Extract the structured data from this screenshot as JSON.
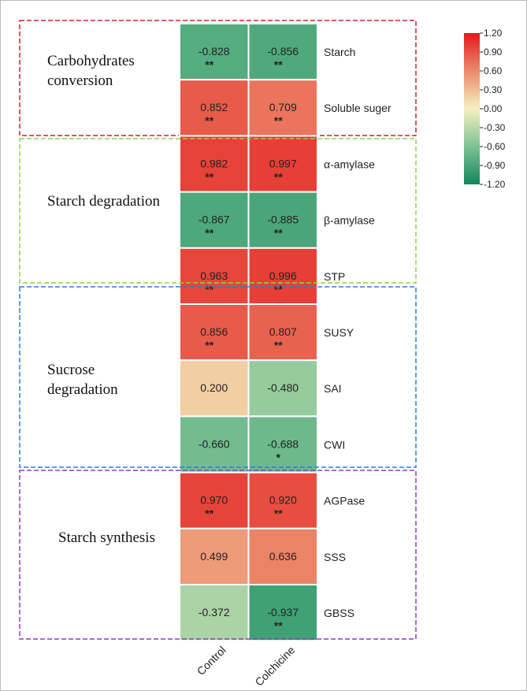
{
  "chart_data": {
    "type": "heatmap",
    "columns": [
      "Control",
      "Colchicine"
    ],
    "clim": [
      -1.2,
      1.2
    ],
    "colormap": [
      "#11875d",
      "#7dc294",
      "#f5f0c0",
      "#eb8a6a",
      "#e3191c"
    ],
    "cticks": [
      {
        "value": 1.2,
        "label": "1.20"
      },
      {
        "value": 0.9,
        "label": "0.90"
      },
      {
        "value": 0.6,
        "label": "0.60"
      },
      {
        "value": 0.3,
        "label": "0.30"
      },
      {
        "value": 0,
        "label": "0.00"
      },
      {
        "value": -0.3,
        "label": "-0.30"
      },
      {
        "value": -0.6,
        "label": "-0.60"
      },
      {
        "value": -0.9,
        "label": "-0.90"
      },
      {
        "value": -1.2,
        "label": "-1.20"
      }
    ],
    "groups": [
      {
        "name": "Carbohydrates conversion",
        "color": "#d0202a",
        "rows": [
          {
            "name": "Starch",
            "values": [
              -0.828,
              -0.856
            ],
            "value_labels": [
              "-0.828",
              "-0.856"
            ],
            "stars": [
              "**",
              "**"
            ]
          },
          {
            "name": "Soluble suger",
            "values": [
              0.852,
              0.709
            ],
            "value_labels": [
              "0.852",
              "0.709"
            ],
            "stars": [
              "**",
              "**"
            ]
          }
        ]
      },
      {
        "name": "Starch degradation",
        "color": "#8fd14f",
        "rows": [
          {
            "name": "α-amylase",
            "values": [
              0.982,
              0.997
            ],
            "value_labels": [
              "0.982",
              "0.997"
            ],
            "stars": [
              "**",
              "**"
            ]
          },
          {
            "name": "β-amylase",
            "values": [
              -0.867,
              -0.885
            ],
            "value_labels": [
              "-0.867",
              "-0.885"
            ],
            "stars": [
              "**",
              "**"
            ]
          },
          {
            "name": "STP",
            "values": [
              0.963,
              0.996
            ],
            "value_labels": [
              "0.963",
              "0.996"
            ],
            "stars": [
              "**",
              "**"
            ]
          }
        ]
      },
      {
        "name": "Sucrose degradation",
        "color": "#2a7fd4",
        "rows": [
          {
            "name": "SUSY",
            "values": [
              0.856,
              0.807
            ],
            "value_labels": [
              "0.856",
              "0.807"
            ],
            "stars": [
              "**",
              "**"
            ]
          },
          {
            "name": "SAI",
            "values": [
              0.2,
              -0.48
            ],
            "value_labels": [
              "0.200",
              "-0.480"
            ],
            "stars": [
              null,
              null
            ]
          },
          {
            "name": "CWI",
            "values": [
              -0.66,
              -0.688
            ],
            "value_labels": [
              "-0.660",
              "-0.688"
            ],
            "stars": [
              null,
              "*"
            ]
          }
        ]
      },
      {
        "name": "Starch synthesis",
        "color": "#8a3fc0",
        "rows": [
          {
            "name": "AGPase",
            "values": [
              0.97,
              0.92
            ],
            "value_labels": [
              "0.970",
              "0.920"
            ],
            "stars": [
              "**",
              "**"
            ]
          },
          {
            "name": "SSS",
            "values": [
              0.499,
              0.636
            ],
            "value_labels": [
              "0.499",
              "0.636"
            ],
            "stars": [
              null,
              null
            ]
          },
          {
            "name": "GBSS",
            "values": [
              -0.372,
              -0.937
            ],
            "value_labels": [
              "-0.372",
              "-0.937"
            ],
            "stars": [
              null,
              "**"
            ]
          }
        ]
      }
    ]
  }
}
